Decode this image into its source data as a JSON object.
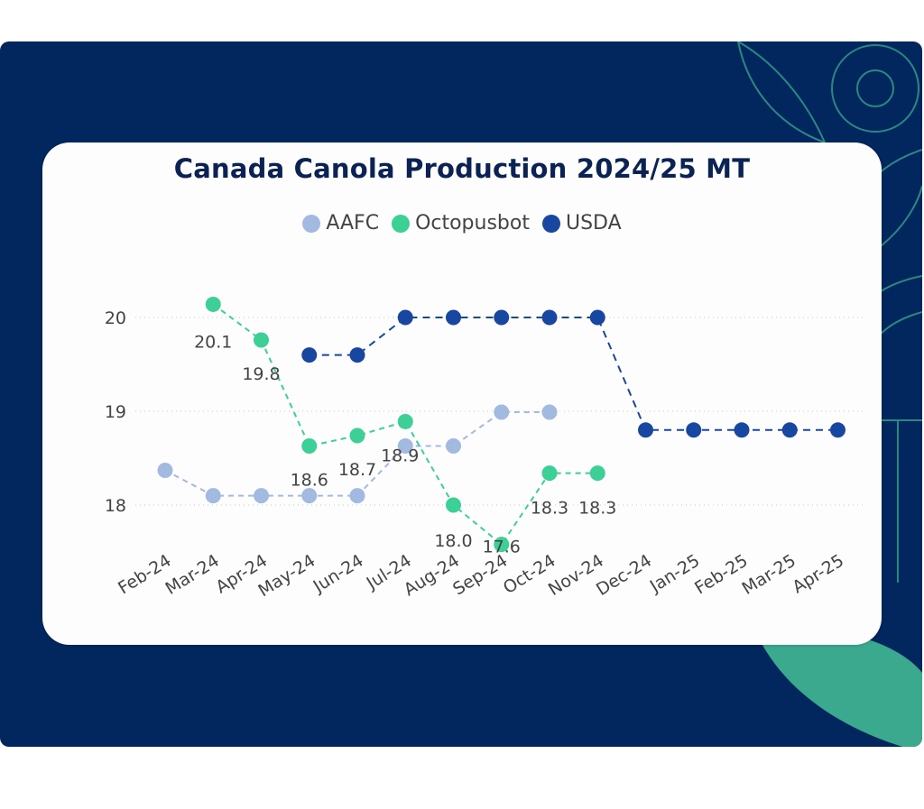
{
  "colors": {
    "background": "#02275e",
    "card": "#fdfdfd",
    "decoration": "#3aa98d",
    "title": "#0b2255"
  },
  "chart_data": {
    "type": "line",
    "title": "Canada Canola Production 2024/25 MT",
    "xlabel": "",
    "ylabel": "",
    "categories": [
      "Feb-24",
      "Mar-24",
      "Apr-24",
      "May-24",
      "Jun-24",
      "Jul-24",
      "Aug-24",
      "Sep-24",
      "Oct-24",
      "Nov-24",
      "Dec-24",
      "Jan-25",
      "Feb-25",
      "Mar-25",
      "Apr-25"
    ],
    "y_ticks": [
      18,
      19,
      20
    ],
    "ylim": [
      17.2,
      21.4
    ],
    "grid": "horizontal dotted",
    "legend_position": "top-center",
    "series": [
      {
        "name": "AAFC",
        "color": "#a2b9e0",
        "values": [
          18.37,
          18.1,
          18.1,
          18.1,
          18.1,
          18.63,
          18.63,
          18.99,
          18.99,
          null,
          null,
          null,
          null,
          null,
          null
        ],
        "data_labels": []
      },
      {
        "name": "Octopusbot",
        "color": "#3ccf96",
        "values": [
          null,
          20.14,
          19.76,
          18.63,
          18.74,
          18.89,
          18.0,
          17.58,
          18.34,
          18.34,
          null,
          null,
          null,
          null,
          null
        ],
        "data_labels": [
          {
            "index": 1,
            "text": "20.1"
          },
          {
            "index": 2,
            "text": "19.8"
          },
          {
            "index": 3,
            "text": "18.6"
          },
          {
            "index": 4,
            "text": "18.7"
          },
          {
            "index": 5,
            "text": "18.9"
          },
          {
            "index": 6,
            "text": "18.0"
          },
          {
            "index": 7,
            "text": "17.6"
          },
          {
            "index": 8,
            "text": "18.3"
          },
          {
            "index": 9,
            "text": "18.3"
          }
        ]
      },
      {
        "name": "USDA",
        "color": "#1747a0",
        "values": [
          null,
          null,
          null,
          19.6,
          19.6,
          20.0,
          20.0,
          20.0,
          20.0,
          20.0,
          18.8,
          18.8,
          18.8,
          18.8,
          18.8
        ],
        "data_labels": []
      }
    ]
  }
}
